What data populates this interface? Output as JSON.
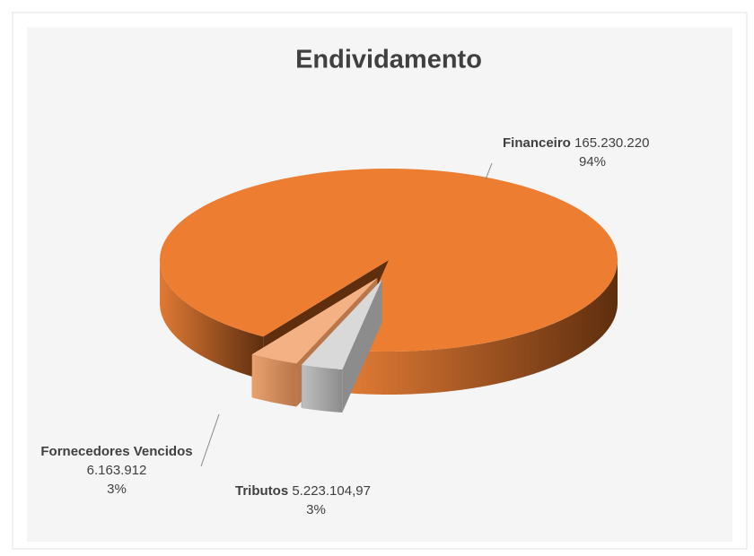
{
  "chart_data": {
    "type": "pie",
    "title": "Endividamento",
    "categories": [
      "Financeiro",
      "Fornecedores Vencidos",
      "Tributos"
    ],
    "values": [
      165230220,
      6163912,
      5223104.97
    ],
    "value_labels": [
      "165.230.220",
      "6.163.912",
      "5.223.104,97"
    ],
    "percents": [
      94,
      3,
      3
    ],
    "percent_labels": [
      "94%",
      "3%",
      "3%"
    ],
    "colors": [
      "#ED7D31",
      "#F4B183",
      "#D9D9D9"
    ],
    "side_colors": [
      [
        "#E07A35",
        "#5E2E0E"
      ],
      [
        "#E9A06E",
        "#B8764A"
      ],
      [
        "#BFBFBF",
        "#8C8C8C"
      ]
    ],
    "exploded": [
      false,
      true,
      true
    ]
  }
}
